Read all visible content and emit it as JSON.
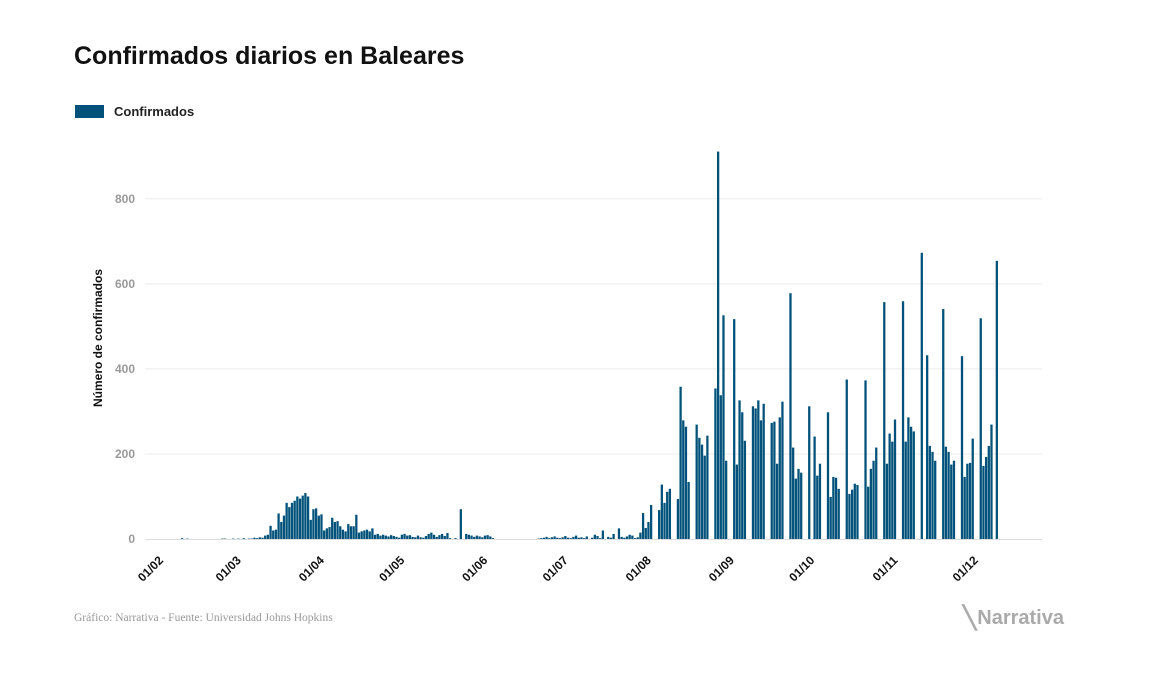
{
  "chart_data": {
    "type": "bar",
    "title": "Confirmados diarios en Baleares",
    "ylabel": "Número de confirmados",
    "xlabel": "",
    "ylim": [
      0,
      950
    ],
    "yticks": [
      0,
      200,
      400,
      600,
      800
    ],
    "xticks": [
      "01/02",
      "01/03",
      "01/04",
      "01/05",
      "01/06",
      "01/07",
      "01/08",
      "01/09",
      "01/10",
      "01/11",
      "01/12"
    ],
    "grid": "horizontal",
    "legend_position": "top-left",
    "series": [
      {
        "name": "Confirmados",
        "color": "#01527a",
        "values_by_month": {
          "01/02": [
            0,
            0,
            0,
            0,
            0,
            0,
            0,
            0,
            0,
            2,
            0,
            1,
            0,
            0,
            0,
            0,
            0,
            0,
            0,
            0,
            0,
            0,
            0,
            0,
            1,
            1,
            0,
            0,
            1
          ],
          "01/03": [
            0,
            1,
            0,
            2,
            0,
            1,
            1,
            3,
            2,
            4,
            3,
            8,
            10,
            31,
            20,
            22,
            60,
            40,
            55,
            85,
            75,
            85,
            90,
            100,
            95,
            102,
            108,
            100,
            45,
            70,
            72
          ],
          "01/04": [
            55,
            58,
            20,
            25,
            28,
            50,
            40,
            42,
            30,
            22,
            18,
            35,
            30,
            30,
            57,
            15,
            18,
            20,
            22,
            18,
            25,
            10,
            12,
            8,
            10,
            8,
            6,
            9,
            7,
            5
          ],
          "01/05": [
            3,
            10,
            12,
            8,
            9,
            5,
            4,
            8,
            4,
            3,
            7,
            12,
            15,
            10,
            5,
            9,
            12,
            7,
            14,
            2,
            0,
            2,
            0,
            70,
            0,
            12,
            10,
            8,
            5,
            8,
            6
          ],
          "01/06": [
            4,
            8,
            9,
            6,
            2,
            0,
            0,
            0,
            0,
            0,
            0,
            0,
            0,
            0,
            0,
            0,
            0,
            0,
            0,
            0,
            0,
            1,
            2,
            3,
            5,
            2,
            4,
            6,
            3,
            2
          ],
          "01/07": [
            4,
            7,
            3,
            2,
            5,
            8,
            3,
            4,
            2,
            6,
            0,
            3,
            10,
            7,
            2,
            20,
            0,
            5,
            3,
            12,
            0,
            25,
            5,
            3,
            6,
            10,
            8,
            2,
            4,
            15,
            61
          ],
          "01/08": [
            26,
            40,
            80,
            0,
            0,
            68,
            128,
            85,
            111,
            118,
            0,
            0,
            94,
            358,
            279,
            264,
            134,
            0,
            0,
            269,
            238,
            222,
            196,
            243,
            0,
            0,
            354,
            911,
            338,
            526,
            184
          ],
          "01/09": [
            0,
            0,
            517,
            175,
            326,
            298,
            231,
            0,
            0,
            312,
            307,
            326,
            279,
            318,
            0,
            0,
            273,
            276,
            177,
            286,
            323,
            0,
            0,
            578,
            215,
            142,
            165,
            156,
            0,
            0
          ],
          "01/10": [
            312,
            0,
            241,
            149,
            177,
            0,
            0,
            298,
            99,
            146,
            144,
            118,
            0,
            0,
            375,
            106,
            116,
            130,
            127,
            0,
            0,
            373,
            123,
            165,
            184,
            215,
            0,
            0,
            557,
            177,
            248
          ],
          "01/11": [
            229,
            281,
            0,
            0,
            559,
            229,
            286,
            264,
            253,
            0,
            0,
            673,
            0,
            432,
            219,
            205,
            184,
            0,
            0,
            541,
            217,
            205,
            175,
            184,
            0,
            0,
            430,
            146,
            177,
            179
          ],
          "01/12": [
            236,
            0,
            0,
            519,
            172,
            193,
            219,
            269,
            0,
            654
          ]
        }
      }
    ]
  },
  "footer": {
    "source": "Gráfico: Narrativa - Fuente: Universidad Johns Hopkins"
  },
  "logo": {
    "text": "Narrativa",
    "icon": "narrativa-n-logo-icon"
  }
}
